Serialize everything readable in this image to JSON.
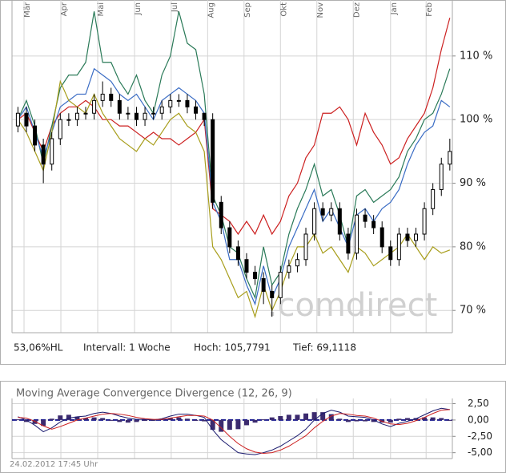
{
  "chart_data": [
    {
      "type": "candlestick",
      "xlim": [
        -0.7,
        51.3
      ],
      "xticks": [
        {
          "value": 0.72,
          "label": "Mär"
        },
        {
          "value": 5.07,
          "label": "Apr"
        },
        {
          "value": 9.42,
          "label": "Mai"
        },
        {
          "value": 13.77,
          "label": "Jun"
        },
        {
          "value": 18.1,
          "label": "Jul"
        },
        {
          "value": 22.4,
          "label": "Aug"
        },
        {
          "value": 26.7,
          "label": "Sep"
        },
        {
          "value": 31,
          "label": "Okt"
        },
        {
          "value": 35.3,
          "label": "Nov"
        },
        {
          "value": 39.6,
          "label": "Dez"
        },
        {
          "value": 44,
          "label": "Jan"
        },
        {
          "value": 48.2,
          "label": "Feb"
        }
      ],
      "ylim": [
        66.5,
        118.8
      ],
      "yticks": [
        {
          "value": 70,
          "label": "70 %"
        },
        {
          "value": 80,
          "label": "80 %"
        },
        {
          "value": 90,
          "label": "90 %"
        },
        {
          "value": 100,
          "label": "100 %"
        },
        {
          "value": 110,
          "label": "110 %"
        }
      ],
      "grid": true,
      "candle_color": "#000000",
      "ohlc": [
        [
          99,
          102,
          98,
          101
        ],
        [
          101,
          102,
          98,
          99
        ],
        [
          99,
          100,
          95,
          96
        ],
        [
          96,
          97,
          90,
          93
        ],
        [
          93,
          98,
          92,
          97
        ],
        [
          97,
          101,
          96,
          100
        ],
        [
          100,
          101,
          99,
          100
        ],
        [
          100,
          102,
          99,
          101
        ],
        [
          101,
          102,
          100,
          101
        ],
        [
          101,
          104,
          100,
          103
        ],
        [
          103,
          106,
          102,
          104
        ],
        [
          104,
          105,
          102,
          103
        ],
        [
          103,
          104,
          100,
          101
        ],
        [
          101,
          102,
          100,
          101
        ],
        [
          101,
          102,
          99,
          100
        ],
        [
          100,
          102,
          99,
          101
        ],
        [
          101,
          102,
          100,
          101
        ],
        [
          101,
          103,
          100,
          102
        ],
        [
          102,
          104,
          101,
          103
        ],
        [
          103,
          104,
          102,
          103
        ],
        [
          103,
          104,
          101,
          102
        ],
        [
          102,
          103,
          100,
          101
        ],
        [
          101,
          101,
          99,
          100
        ],
        [
          100,
          101,
          86,
          87
        ],
        [
          87,
          88,
          82,
          83
        ],
        [
          83,
          84,
          79,
          80
        ],
        [
          80,
          81,
          77,
          78
        ],
        [
          78,
          79,
          75,
          76
        ],
        [
          76,
          77,
          74,
          75
        ],
        [
          75,
          76,
          71,
          73
        ],
        [
          73,
          74,
          69,
          72
        ],
        [
          72,
          77,
          71,
          76
        ],
        [
          76,
          78,
          75,
          77
        ],
        [
          77,
          79,
          76,
          78
        ],
        [
          78,
          83,
          77,
          82
        ],
        [
          82,
          87,
          81,
          86
        ],
        [
          86,
          87,
          84,
          85
        ],
        [
          85,
          87,
          84,
          86
        ],
        [
          86,
          87,
          81,
          82
        ],
        [
          82,
          83,
          78,
          79
        ],
        [
          79,
          86,
          78,
          85
        ],
        [
          85,
          86,
          83,
          84
        ],
        [
          84,
          85,
          82,
          83
        ],
        [
          83,
          84,
          79,
          80
        ],
        [
          80,
          81,
          77,
          78
        ],
        [
          78,
          83,
          77,
          82
        ],
        [
          82,
          83,
          80,
          81
        ],
        [
          81,
          83,
          80,
          82
        ],
        [
          82,
          87,
          81,
          86
        ],
        [
          86,
          90,
          85,
          89
        ],
        [
          89,
          94,
          88,
          93
        ],
        [
          93,
          97,
          92,
          95
        ]
      ],
      "series": [
        {
          "color": "#cc2020",
          "values": [
            100,
            101,
            98,
            95,
            99,
            101,
            102,
            102,
            103,
            102,
            100,
            100,
            99,
            99,
            98,
            97,
            98,
            97,
            97,
            96,
            97,
            98,
            100,
            86,
            85,
            84,
            82,
            84,
            82,
            85,
            82,
            84,
            88,
            90,
            94,
            96,
            101,
            101,
            102,
            100,
            96,
            101,
            98,
            96,
            93,
            94,
            97,
            99,
            101,
            105,
            111,
            116
          ]
        },
        {
          "color": "#2a7a58",
          "values": [
            100,
            103,
            99,
            93,
            99,
            105,
            107,
            107,
            109,
            117,
            109,
            109,
            106,
            104,
            107,
            103,
            101,
            107,
            110,
            117,
            112,
            111,
            104,
            88,
            85,
            80,
            79,
            75,
            72,
            80,
            74,
            76,
            82,
            86,
            89,
            93,
            88,
            89,
            85,
            80,
            88,
            89,
            87,
            88,
            89,
            91,
            95,
            97,
            100,
            101,
            104,
            108
          ]
        },
        {
          "color": "#3a6cc4",
          "values": [
            100,
            102,
            98,
            94,
            98,
            102,
            103,
            104,
            104,
            108,
            107,
            106,
            104,
            103,
            104,
            102,
            100,
            103,
            104,
            105,
            104,
            103,
            101,
            87,
            84,
            78,
            78,
            74,
            71,
            77,
            72,
            75,
            80,
            83,
            86,
            89,
            84,
            86,
            83,
            80,
            85,
            86,
            84,
            86,
            87,
            89,
            93,
            96,
            98,
            99,
            103,
            102
          ]
        },
        {
          "color": "#a89e1c",
          "values": [
            100,
            98,
            95,
            92,
            98,
            106,
            103,
            102,
            101,
            104,
            101,
            99,
            97,
            96,
            95,
            97,
            96,
            98,
            100,
            101,
            99,
            98,
            95,
            80,
            78,
            75,
            72,
            73,
            69,
            74,
            70,
            73,
            77,
            80,
            80,
            82,
            79,
            80,
            78,
            76,
            80,
            79,
            77,
            78,
            79,
            80,
            82,
            80,
            78,
            80,
            79,
            79.5
          ]
        }
      ],
      "watermark": ".comdirect",
      "info": [
        "53,06%HL",
        "Intervall: 1 Woche",
        "Hoch: 105,7791",
        "Tief: 69,1118"
      ]
    },
    {
      "type": "macd",
      "title": "Moving Average Convergence Divergence (12, 26, 9)",
      "xlim": [
        -0.7,
        51.3
      ],
      "xticks": [
        0.72,
        5.07,
        9.42,
        13.77,
        18.1,
        22.4,
        26.7,
        31,
        35.3,
        39.6,
        44,
        48.2
      ],
      "ylim": [
        -5.9,
        3.3
      ],
      "yticks": [
        {
          "value": 2.5,
          "label": "2,50"
        },
        {
          "value": 0,
          "label": "0,00"
        },
        {
          "value": -2.5,
          "label": "-2,50"
        },
        {
          "value": -5,
          "label": "-5,00"
        }
      ],
      "grid": true,
      "histogram": {
        "color": "#3b2a6e",
        "values": [
          0.1,
          -0.3,
          -0.6,
          -0.9,
          0.2,
          0.7,
          0.8,
          0.5,
          0.3,
          0.4,
          0.3,
          0,
          -0.3,
          -0.4,
          -0.3,
          -0.1,
          -0.1,
          0.1,
          0.3,
          0.4,
          0.2,
          0,
          -0.2,
          -1.5,
          -1.8,
          -1.5,
          -1.4,
          -0.8,
          -0.4,
          0.1,
          0.4,
          0.6,
          0.8,
          0.8,
          1.0,
          1.2,
          1.2,
          0.9,
          0.2,
          -0.3,
          -0.2,
          -0.2,
          -0.3,
          -0.4,
          -0.4,
          0.2,
          0.3,
          0.3,
          0.4,
          0.4,
          0.3,
          0
        ]
      },
      "series": [
        {
          "color": "#1a1a6e",
          "values": [
            0.5,
            0,
            -0.8,
            -1.8,
            -1.2,
            -0.3,
            0.3,
            0.5,
            0.6,
            1.0,
            1.2,
            1.0,
            0.6,
            0.3,
            0.1,
            0.1,
            0.0,
            0.2,
            0.6,
            0.9,
            0.9,
            0.7,
            0.4,
            -1.5,
            -3.0,
            -4.0,
            -5.0,
            -5.2,
            -5.3,
            -5.0,
            -4.6,
            -4.0,
            -3.2,
            -2.4,
            -1.4,
            0,
            1.0,
            1.5,
            1.2,
            0.6,
            0.5,
            0.4,
            0.0,
            -0.6,
            -1.0,
            -0.5,
            -0.2,
            0.2,
            0.8,
            1.4,
            1.8,
            1.6
          ]
        },
        {
          "color": "#cc2020",
          "values": [
            0.4,
            0.3,
            -0.2,
            -0.9,
            -1.4,
            -1.0,
            -0.5,
            0,
            0.3,
            0.6,
            0.9,
            1.0,
            0.9,
            0.7,
            0.4,
            0.2,
            0.1,
            0.1,
            0.3,
            0.5,
            0.7,
            0.7,
            0.6,
            0,
            -1.2,
            -2.5,
            -3.6,
            -4.4,
            -4.9,
            -5.1,
            -5.0,
            -4.6,
            -4.0,
            -3.2,
            -2.4,
            -1.2,
            -0.2,
            0.6,
            1.0,
            0.9,
            0.7,
            0.6,
            0.3,
            -0.2,
            -0.6,
            -0.7,
            -0.5,
            -0.1,
            0.4,
            1.0,
            1.5,
            1.6
          ]
        }
      ],
      "timestamp": "24.02.2012 17:45 Uhr"
    }
  ]
}
